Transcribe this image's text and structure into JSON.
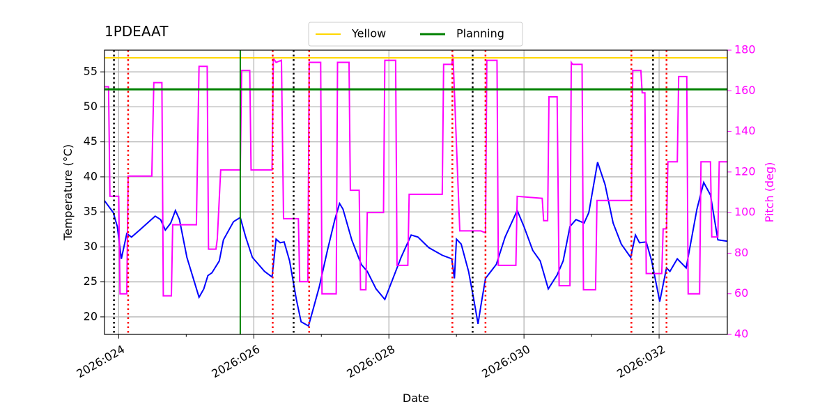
{
  "chart_data": {
    "type": "line",
    "title": "1PDEAAT",
    "xlabel": "Date",
    "ylabel": "Temperature (°C)",
    "y2label": "Pitch (deg)",
    "y2color": "magenta",
    "grid": true,
    "legend": "upper center",
    "xlim": [
      23.79,
      33.01
    ],
    "xticks": [
      {
        "value": 24,
        "label": "2026:024"
      },
      {
        "value": 26,
        "label": "2026:026"
      },
      {
        "value": 28,
        "label": "2026:028"
      },
      {
        "value": 30,
        "label": "2026:030"
      },
      {
        "value": 32,
        "label": "2026:032"
      }
    ],
    "xminorticks": [
      25,
      27,
      29,
      31
    ],
    "ylim": [
      17.5,
      58.1
    ],
    "yticks": [
      20,
      25,
      30,
      35,
      40,
      45,
      50,
      55
    ],
    "y2lim": [
      40,
      180
    ],
    "y2ticks": [
      40,
      60,
      80,
      100,
      120,
      140,
      160,
      180
    ],
    "hlines": [
      {
        "name": "Yellow",
        "color": "gold",
        "value": 57
      },
      {
        "name": "Planning",
        "color": "green",
        "value": 52.5
      }
    ],
    "vlines": [
      {
        "color": "black",
        "style": "dotted",
        "x": [
          23.93,
          26.59,
          29.24,
          31.91
        ]
      },
      {
        "color": "red",
        "style": "dotted",
        "x": [
          24.14,
          26.28,
          26.82,
          28.94,
          29.43,
          31.59,
          32.11
        ]
      },
      {
        "color": "green",
        "style": "solid",
        "x": [
          25.8
        ]
      }
    ],
    "series": [
      {
        "color": "blue",
        "axis": "y",
        "x": [
          23.79,
          23.92,
          23.98,
          24.04,
          24.12,
          24.19,
          24.31,
          24.54,
          24.62,
          24.69,
          24.77,
          24.84,
          24.9,
          25.01,
          25.19,
          25.26,
          25.32,
          25.38,
          25.49,
          25.55,
          25.7,
          25.8,
          25.88,
          25.98,
          26.16,
          26.27,
          26.33,
          26.39,
          26.45,
          26.53,
          26.63,
          26.7,
          26.81,
          26.89,
          26.97,
          27.09,
          27.2,
          27.27,
          27.32,
          27.45,
          27.59,
          27.68,
          27.81,
          27.94,
          28.02,
          28.18,
          28.33,
          28.43,
          28.59,
          28.79,
          28.93,
          28.97,
          29.0,
          29.07,
          29.18,
          29.26,
          29.32,
          29.36,
          29.43,
          29.59,
          29.72,
          29.9,
          30.0,
          30.13,
          30.24,
          30.36,
          30.49,
          30.58,
          30.68,
          30.77,
          30.89,
          30.96,
          31.09,
          31.2,
          31.32,
          31.44,
          31.58,
          31.65,
          31.71,
          31.81,
          31.89,
          32.01,
          32.11,
          32.16,
          32.27,
          32.4,
          32.56,
          32.66,
          32.76,
          32.87,
          33.01
        ],
        "values": [
          36.6,
          34.9,
          32.9,
          28.3,
          31.9,
          31.4,
          32.4,
          34.4,
          33.9,
          32.4,
          33.4,
          35.2,
          33.9,
          28.5,
          22.8,
          24.0,
          25.9,
          26.3,
          28.0,
          31.0,
          33.6,
          34.2,
          31.4,
          28.5,
          26.5,
          25.7,
          31.1,
          30.6,
          30.7,
          28.0,
          22.5,
          19.3,
          18.7,
          21.5,
          24.3,
          29.5,
          33.9,
          36.2,
          35.4,
          31.0,
          27.5,
          26.5,
          24.0,
          22.5,
          24.5,
          28.5,
          31.7,
          31.4,
          29.9,
          28.8,
          28.3,
          25.5,
          31.1,
          30.4,
          26.5,
          22.3,
          19.0,
          21.5,
          25.5,
          27.5,
          31.4,
          35.2,
          32.9,
          29.5,
          28.0,
          24.0,
          26.0,
          28.0,
          32.9,
          33.9,
          33.4,
          34.9,
          42.1,
          38.9,
          33.4,
          30.4,
          28.5,
          31.7,
          30.6,
          30.7,
          28.0,
          22.2,
          27.0,
          26.5,
          28.3,
          27.0,
          35.4,
          39.2,
          37.4,
          31.0,
          30.8
        ]
      },
      {
        "color": "magenta",
        "axis": "y2",
        "x": [
          23.79,
          23.85,
          23.87,
          24.0,
          24.02,
          24.12,
          24.14,
          24.49,
          24.52,
          24.64,
          24.66,
          24.78,
          24.8,
          25.15,
          25.19,
          25.31,
          25.33,
          25.44,
          25.46,
          25.51,
          25.8,
          25.82,
          25.94,
          25.96,
          26.27,
          26.29,
          26.33,
          26.41,
          26.44,
          26.66,
          26.68,
          26.8,
          26.82,
          26.99,
          27.01,
          27.22,
          27.24,
          27.41,
          27.43,
          27.56,
          27.58,
          27.66,
          27.68,
          27.92,
          27.94,
          28.1,
          28.12,
          28.28,
          28.3,
          28.79,
          28.81,
          28.93,
          28.95,
          29.05,
          29.36,
          29.43,
          29.45,
          29.6,
          29.62,
          29.88,
          29.9,
          30.27,
          30.29,
          30.35,
          30.37,
          30.49,
          30.52,
          30.68,
          30.7,
          30.72,
          30.86,
          30.88,
          31.06,
          31.08,
          31.59,
          31.61,
          31.73,
          31.75,
          31.79,
          31.81,
          32.04,
          32.06,
          32.11,
          32.13,
          32.27,
          32.29,
          32.41,
          32.43,
          32.6,
          32.62,
          32.76,
          32.78,
          32.87,
          32.89,
          33.01
        ],
        "values": [
          162,
          162,
          108,
          108,
          60,
          60,
          118,
          118,
          164,
          164,
          59,
          59,
          94,
          94,
          172,
          172,
          82,
          82,
          87,
          121,
          121,
          170,
          170,
          121,
          121,
          176,
          174,
          175,
          97,
          97,
          66,
          66,
          174,
          174,
          60,
          60,
          174,
          174,
          111,
          111,
          62,
          62,
          100,
          100,
          175,
          175,
          74,
          74,
          109,
          109,
          173,
          173,
          177,
          91,
          91,
          90,
          175,
          175,
          74,
          74,
          108,
          107,
          96,
          96,
          157,
          157,
          64,
          64,
          174,
          173,
          173,
          62,
          62,
          106,
          106,
          170,
          170,
          159,
          159,
          70,
          70,
          92,
          92,
          125,
          125,
          167,
          167,
          60,
          60,
          125,
          125,
          88,
          88,
          125,
          125
        ]
      }
    ]
  }
}
